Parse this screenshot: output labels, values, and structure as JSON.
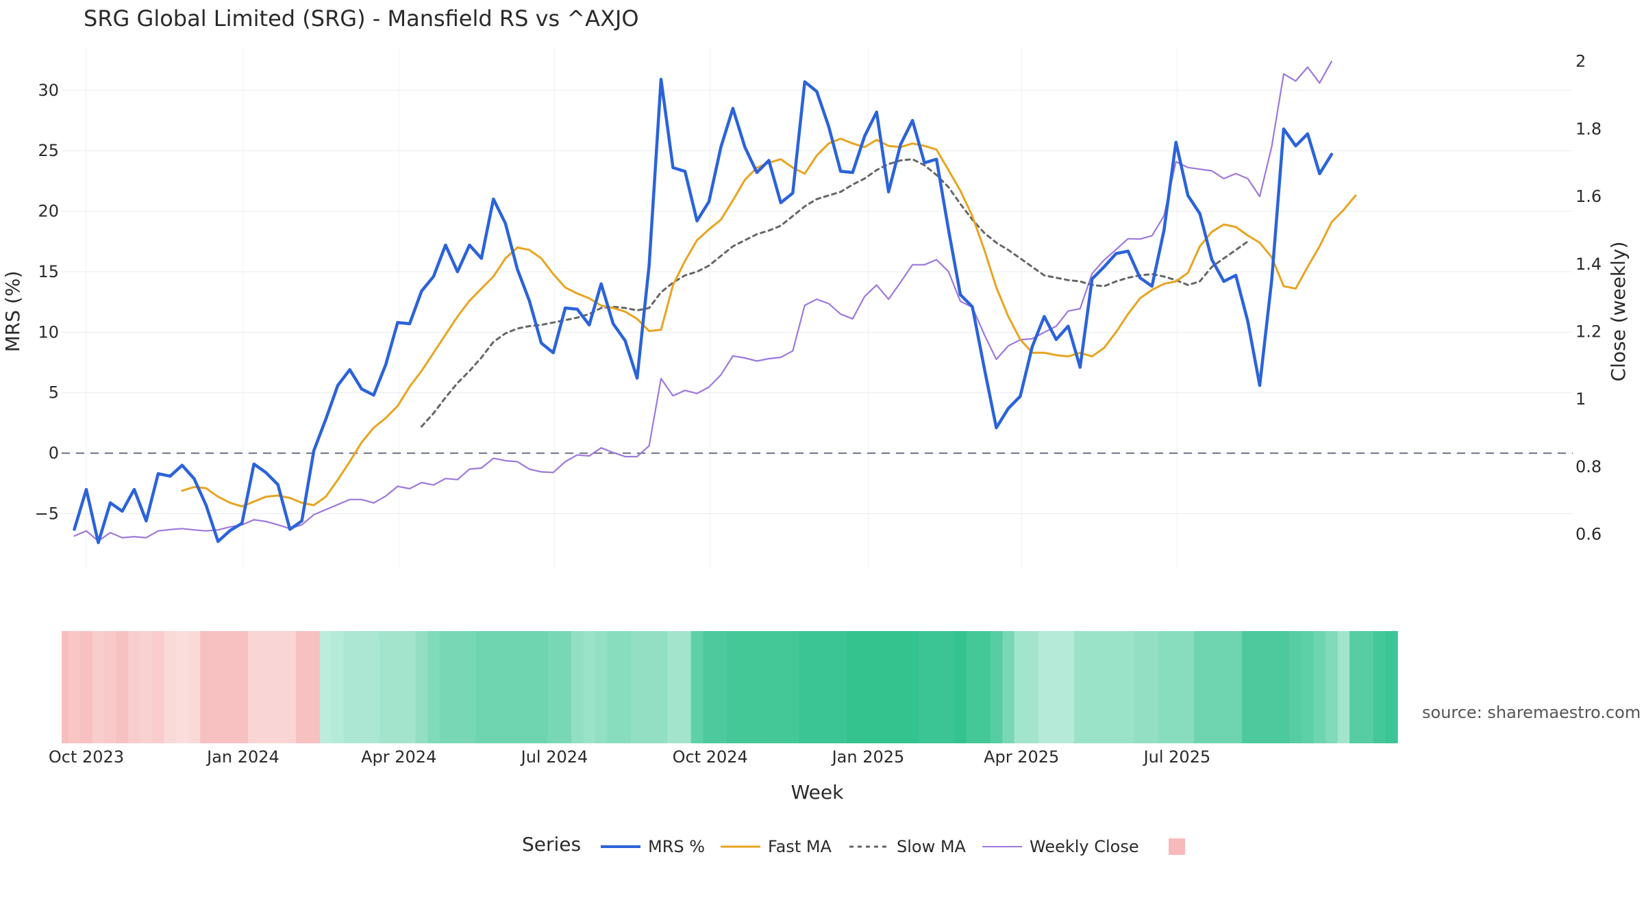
{
  "chart_data": {
    "type": "line",
    "title": "SRG Global Limited (SRG) - Mansfield RS vs ^AXJO",
    "xlabel": "Week",
    "ylabel": "MRS (%)",
    "y2label": "Close (weekly)",
    "ylim": [
      -9.5,
      33.5
    ],
    "y2lim": [
      0.5,
      2.04
    ],
    "y_ticks": [
      -5,
      0,
      5,
      10,
      15,
      20,
      25,
      30
    ],
    "y2_ticks": [
      0.6,
      0.8,
      1,
      1.2,
      1.4,
      1.6,
      1.8,
      2
    ],
    "y2_tick_labels": [
      "0.6",
      "0.8",
      "1",
      "1.2",
      "1.4",
      "1.6",
      "1.8",
      "2"
    ],
    "x_tick_labels": [
      "Oct 2023",
      "Jan 2024",
      "Apr 2024",
      "Jul 2024",
      "Oct 2024",
      "Jan 2025",
      "Apr 2025",
      "Jul 2025"
    ],
    "x_tick_weeks": [
      0,
      13.1,
      26.1,
      39.1,
      52.1,
      65.3,
      78.1,
      91.1
    ],
    "zero_line": 0,
    "week_start": "2023-10-02",
    "series": [
      {
        "name": "MRS %",
        "color": "#2b63d9",
        "axis": "y",
        "start_week": -1,
        "values": [
          -6.3,
          -3.0,
          -7.4,
          -4.1,
          -4.8,
          -3.0,
          -5.6,
          -1.7,
          -1.9,
          -1.0,
          -2.1,
          -4.3,
          -7.3,
          -6.4,
          -5.8,
          -0.9,
          -1.6,
          -2.6,
          -6.3,
          -5.6,
          0.2,
          2.8,
          5.6,
          6.9,
          5.3,
          4.8,
          7.3,
          10.8,
          10.7,
          13.4,
          14.6,
          17.2,
          15.0,
          17.2,
          16.1,
          21.0,
          19.0,
          15.2,
          12.6,
          9.1,
          8.3,
          12.0,
          11.9,
          10.6,
          14.0,
          10.7,
          9.3,
          6.2,
          15.5,
          30.9,
          23.6,
          23.3,
          19.2,
          20.8,
          25.3,
          28.5,
          25.3,
          23.2,
          24.2,
          20.7,
          21.5,
          30.7,
          29.9,
          27.0,
          23.3,
          23.2,
          26.2,
          28.2,
          21.6,
          25.5,
          27.5,
          24.0,
          24.3,
          18.5,
          13.1,
          12.1,
          7.0,
          2.1,
          3.7,
          4.7,
          8.8,
          11.3,
          9.4,
          10.5,
          7.1,
          14.4,
          15.4,
          16.5,
          16.7,
          14.5,
          13.8,
          18.4,
          25.7,
          21.3,
          19.8,
          16.0,
          14.2,
          14.7,
          10.9,
          5.6,
          14.3,
          26.8,
          25.4,
          26.4,
          23.1,
          24.7
        ]
      },
      {
        "name": "Fast MA",
        "color": "#e8a420",
        "axis": "y",
        "start_week": 8,
        "values": [
          -3.1,
          -2.8,
          -2.9,
          -3.6,
          -4.1,
          -4.4,
          -4.0,
          -3.6,
          -3.5,
          -3.7,
          -4.1,
          -4.3,
          -3.6,
          -2.2,
          -0.7,
          0.9,
          2.1,
          2.9,
          3.9,
          5.5,
          6.8,
          8.3,
          9.8,
          11.3,
          12.6,
          13.6,
          14.6,
          16.1,
          17.0,
          16.8,
          16.1,
          14.8,
          13.7,
          13.2,
          12.8,
          12.2,
          12.0,
          11.7,
          11.1,
          10.1,
          10.2,
          13.9,
          15.9,
          17.6,
          18.5,
          19.3,
          20.9,
          22.6,
          23.6,
          24.0,
          24.3,
          23.6,
          23.1,
          24.6,
          25.6,
          26.0,
          25.6,
          25.3,
          25.9,
          25.4,
          25.3,
          25.6,
          25.4,
          25.1,
          23.4,
          21.7,
          19.6,
          16.8,
          13.7,
          11.3,
          9.4,
          8.3,
          8.3,
          8.1,
          8.0,
          8.3,
          8.0,
          8.7,
          10.0,
          11.5,
          12.8,
          13.5,
          14.0,
          14.2,
          14.9,
          17.1,
          18.3,
          18.9,
          18.7,
          18.0,
          17.4,
          16.2,
          13.8,
          13.6,
          15.4,
          17.1,
          19.1,
          20.1,
          21.3
        ]
      },
      {
        "name": "Slow MA",
        "color": "#666666",
        "axis": "y",
        "dashed": true,
        "start_week": 28,
        "values": [
          2.2,
          3.3,
          4.6,
          5.8,
          6.8,
          7.9,
          9.2,
          9.9,
          10.3,
          10.5,
          10.6,
          10.8,
          11.0,
          11.2,
          11.5,
          12.0,
          12.1,
          12.0,
          11.8,
          12.0,
          13.3,
          14.1,
          14.7,
          15.0,
          15.5,
          16.3,
          17.1,
          17.6,
          18.1,
          18.4,
          18.8,
          19.6,
          20.4,
          21.0,
          21.3,
          21.6,
          22.2,
          22.7,
          23.4,
          23.9,
          24.2,
          24.3,
          23.8,
          23.0,
          22.0,
          20.6,
          19.3,
          18.2,
          17.4,
          16.8,
          16.1,
          15.4,
          14.7,
          14.5,
          14.3,
          14.2,
          13.9,
          13.8,
          14.2,
          14.5,
          14.7,
          14.8,
          14.6,
          14.3,
          13.9,
          14.2,
          15.4,
          16.1,
          16.8,
          17.5
        ]
      },
      {
        "name": "Weekly Close",
        "color": "#9d78dc",
        "axis": "y2",
        "start_week": -1,
        "values": [
          0.595,
          0.61,
          0.58,
          0.605,
          0.59,
          0.593,
          0.59,
          0.61,
          0.614,
          0.617,
          0.613,
          0.61,
          0.613,
          0.622,
          0.628,
          0.643,
          0.638,
          0.628,
          0.617,
          0.628,
          0.658,
          0.673,
          0.688,
          0.703,
          0.703,
          0.693,
          0.713,
          0.742,
          0.735,
          0.753,
          0.746,
          0.765,
          0.762,
          0.793,
          0.796,
          0.825,
          0.818,
          0.815,
          0.793,
          0.785,
          0.783,
          0.815,
          0.835,
          0.832,
          0.856,
          0.842,
          0.83,
          0.83,
          0.862,
          1.061,
          1.01,
          1.026,
          1.017,
          1.036,
          1.072,
          1.128,
          1.122,
          1.113,
          1.12,
          1.124,
          1.143,
          1.278,
          1.296,
          1.283,
          1.252,
          1.238,
          1.304,
          1.338,
          1.296,
          1.346,
          1.398,
          1.398,
          1.413,
          1.378,
          1.29,
          1.272,
          1.191,
          1.118,
          1.158,
          1.176,
          1.179,
          1.198,
          1.216,
          1.261,
          1.268,
          1.372,
          1.412,
          1.443,
          1.475,
          1.474,
          1.484,
          1.543,
          1.703,
          1.686,
          1.681,
          1.676,
          1.653,
          1.668,
          1.653,
          1.6,
          1.748,
          1.963,
          1.942,
          1.983,
          1.936,
          2.0
        ]
      }
    ],
    "regime_band": {
      "type": "heatmap",
      "start_week": -2,
      "values": [
        -1.0,
        -0.8,
        -0.9,
        -0.6,
        -0.7,
        -0.9,
        -0.6,
        -0.5,
        -0.6,
        -0.3,
        -0.2,
        -0.3,
        -0.9,
        -0.9,
        -0.9,
        -0.9,
        -0.4,
        -0.4,
        -0.4,
        -0.4,
        -0.9,
        -0.9,
        0.15,
        0.2,
        0.25,
        0.25,
        0.25,
        0.3,
        0.3,
        0.3,
        0.4,
        0.5,
        0.55,
        0.55,
        0.55,
        0.6,
        0.6,
        0.6,
        0.6,
        0.6,
        0.6,
        0.55,
        0.55,
        0.4,
        0.35,
        0.4,
        0.45,
        0.45,
        0.4,
        0.4,
        0.4,
        0.3,
        0.3,
        0.7,
        0.8,
        0.8,
        0.85,
        0.85,
        0.85,
        0.85,
        0.85,
        0.85,
        0.9,
        0.9,
        0.9,
        0.9,
        0.95,
        0.95,
        0.95,
        0.95,
        0.95,
        0.95,
        0.9,
        0.9,
        0.9,
        0.95,
        0.85,
        0.85,
        0.75,
        0.55,
        0.3,
        0.3,
        0.2,
        0.2,
        0.2,
        0.35,
        0.35,
        0.35,
        0.35,
        0.35,
        0.4,
        0.4,
        0.45,
        0.45,
        0.45,
        0.6,
        0.6,
        0.6,
        0.6,
        0.8,
        0.8,
        0.8,
        0.8,
        0.75,
        0.7,
        0.6,
        0.5,
        0.3,
        0.75,
        0.75,
        0.85,
        0.9
      ]
    },
    "legend": {
      "title": "Series",
      "position": "bottom-center",
      "items": [
        "MRS %",
        "Fast MA",
        "Slow MA",
        "Weekly Close",
        ""
      ]
    },
    "source_note": "source: sharemaestro.com"
  }
}
